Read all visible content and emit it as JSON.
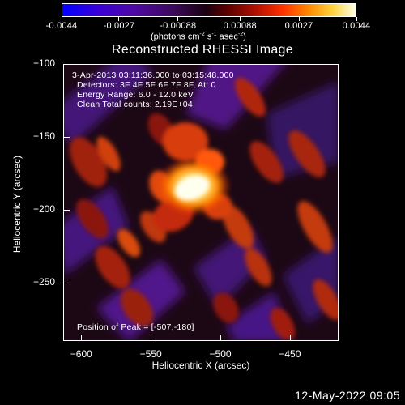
{
  "colorbar": {
    "ticks": [
      "-0.0044",
      "-0.0027",
      "-0.00088",
      "0.00088",
      "0.0027",
      "0.0044"
    ],
    "units": "(photons cm  s  asec )",
    "units_parts": [
      "(photons cm",
      "-2",
      " s",
      "-1",
      " asec",
      "-2",
      ")"
    ]
  },
  "title": "Reconstructed RHESSI Image",
  "info": {
    "line1": "3-Apr-2013 03:11:36.000 to 03:15:48.000",
    "line2": "Detectors: 3F 4F 5F 6F 7F 8F, Att 0",
    "line3": "Energy Range: 6.0 - 12.0 keV",
    "line4": "Clean     Total counts: 2.19E+04",
    "peak": "Position of Peak = [-507,-180]"
  },
  "axes": {
    "xlabel": "Heliocentric X (arcsec)",
    "ylabel": "Heliocentric Y (arcsec)",
    "xticks": [
      "-600",
      "-550",
      "-500",
      "-450"
    ],
    "yticks": [
      "-100",
      "-150",
      "-200",
      "-250"
    ],
    "xlim": [
      -613,
      -415
    ],
    "ylim": [
      -290,
      -100
    ]
  },
  "timestamp": "12-May-2022 09:05",
  "colors": {
    "low": "#0000ff",
    "zero": "#1a0010",
    "high": "#ffffe8",
    "frame": "#ffffff"
  }
}
